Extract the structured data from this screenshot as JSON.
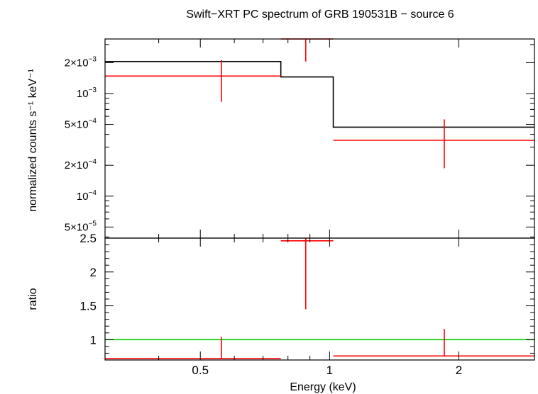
{
  "chart_data": [
    {
      "type": "line",
      "title": "Swift−XRT PC spectrum of GRB 190531B − source 6",
      "ylabel": "normalized counts s⁻¹ keV⁻¹",
      "yscale": "log",
      "ylim": [
        3.9e-05,
        0.0034
      ],
      "xscale": "log",
      "xlim": [
        0.3,
        3.0
      ],
      "y_ticks": [
        {
          "v": 5e-05,
          "mant": "5×10",
          "exp": "−5"
        },
        {
          "v": 0.0001,
          "mant": "10",
          "exp": "−4"
        },
        {
          "v": 0.0002,
          "mant": "2×10",
          "exp": "−4"
        },
        {
          "v": 0.0005,
          "mant": "5×10",
          "exp": "−4"
        },
        {
          "v": 0.001,
          "mant": "10",
          "exp": "−3"
        },
        {
          "v": 0.002,
          "mant": "2×10",
          "exp": "−3"
        }
      ],
      "series": [
        {
          "kind": "model",
          "color": "#000000",
          "bins": [
            {
              "x0": 0.3,
              "x1": 0.77,
              "y": 0.00205
            },
            {
              "x0": 0.77,
              "x1": 1.02,
              "y": 0.00145
            },
            {
              "x0": 1.02,
              "x1": 3.0,
              "y": 0.00047
            }
          ]
        },
        {
          "kind": "data",
          "color": "#ff0000",
          "points": [
            {
              "x": 0.56,
              "x0": 0.3,
              "x1": 0.77,
              "y": 0.00148,
              "ylo": 0.00083,
              "yhi": 0.00212
            },
            {
              "x": 0.88,
              "x0": 0.77,
              "x1": 1.02,
              "y": 0.0034,
              "ylo": 0.00205,
              "yhi": 0.0034
            },
            {
              "x": 1.85,
              "x0": 1.02,
              "x1": 3.0,
              "y": 0.00035,
              "ylo": 0.000187,
              "yhi": 0.00056
            }
          ]
        }
      ]
    },
    {
      "type": "line",
      "xlabel": "Energy (keV)",
      "ylabel": "ratio",
      "ylim": [
        0.7,
        2.5
      ],
      "xscale": "log",
      "xlim": [
        0.3,
        3.0
      ],
      "y_ticks": [
        "1",
        "1.5",
        "2",
        "2.5"
      ],
      "x_ticks": [
        "0.5",
        "1",
        "2"
      ],
      "reference_line": {
        "y": 1,
        "color": "#00cc00"
      },
      "series": [
        {
          "kind": "data",
          "color": "#ff0000",
          "points": [
            {
              "x": 0.56,
              "x0": 0.3,
              "x1": 0.77,
              "y": 0.72,
              "ylo": 0.72,
              "yhi": 1.04
            },
            {
              "x": 0.88,
              "x0": 0.77,
              "x1": 1.02,
              "y": 2.46,
              "ylo": 1.45,
              "yhi": 2.5
            },
            {
              "x": 1.85,
              "x0": 1.02,
              "x1": 3.0,
              "y": 0.76,
              "ylo": 0.76,
              "yhi": 1.16
            }
          ]
        }
      ]
    }
  ]
}
